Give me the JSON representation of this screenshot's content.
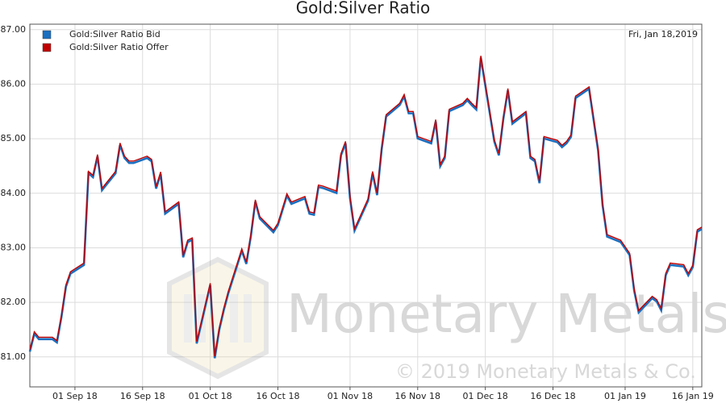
{
  "chart_data": {
    "type": "line",
    "title": "Gold:Silver Ratio",
    "annotation": "Fri, Jan 18,2019",
    "watermark": "Monetary Metals",
    "copyright": "© 2019 Monetary Metals & Co.",
    "x": [
      "2018-08-22",
      "2018-08-23",
      "2018-08-24",
      "2018-08-27",
      "2018-08-28",
      "2018-08-29",
      "2018-08-30",
      "2018-08-31",
      "2018-09-03",
      "2018-09-04",
      "2018-09-05",
      "2018-09-06",
      "2018-09-07",
      "2018-09-10",
      "2018-09-11",
      "2018-09-12",
      "2018-09-13",
      "2018-09-14",
      "2018-09-17",
      "2018-09-18",
      "2018-09-19",
      "2018-09-20",
      "2018-09-21",
      "2018-09-24",
      "2018-09-25",
      "2018-09-26",
      "2018-09-27",
      "2018-09-28",
      "2018-10-01",
      "2018-10-02",
      "2018-10-03",
      "2018-10-04",
      "2018-10-05",
      "2018-10-08",
      "2018-10-09",
      "2018-10-10",
      "2018-10-11",
      "2018-10-12",
      "2018-10-15",
      "2018-10-16",
      "2018-10-17",
      "2018-10-18",
      "2018-10-19",
      "2018-10-22",
      "2018-10-23",
      "2018-10-24",
      "2018-10-25",
      "2018-10-26",
      "2018-10-29",
      "2018-10-30",
      "2018-10-31",
      "2018-11-01",
      "2018-11-02",
      "2018-11-05",
      "2018-11-06",
      "2018-11-07",
      "2018-11-08",
      "2018-11-09",
      "2018-11-12",
      "2018-11-13",
      "2018-11-14",
      "2018-11-15",
      "2018-11-16",
      "2018-11-19",
      "2018-11-20",
      "2018-11-21",
      "2018-11-22",
      "2018-11-23",
      "2018-11-26",
      "2018-11-27",
      "2018-11-28",
      "2018-11-29",
      "2018-11-30",
      "2018-12-03",
      "2018-12-04",
      "2018-12-05",
      "2018-12-06",
      "2018-12-07",
      "2018-12-10",
      "2018-12-11",
      "2018-12-12",
      "2018-12-13",
      "2018-12-14",
      "2018-12-17",
      "2018-12-18",
      "2018-12-19",
      "2018-12-20",
      "2018-12-21",
      "2018-12-24",
      "2018-12-26",
      "2018-12-27",
      "2018-12-28",
      "2018-12-31",
      "2019-01-02",
      "2019-01-03",
      "2019-01-04",
      "2019-01-07",
      "2019-01-08",
      "2019-01-09",
      "2019-01-10",
      "2019-01-11",
      "2019-01-14",
      "2019-01-15",
      "2019-01-16",
      "2019-01-17",
      "2019-01-18"
    ],
    "series": [
      {
        "name": "Gold:Silver Ratio Bid",
        "color": "#1a6fc0",
        "values": [
          81.11,
          81.44,
          81.34,
          81.34,
          81.28,
          81.74,
          82.3,
          82.54,
          82.7,
          84.38,
          84.31,
          84.69,
          84.07,
          84.38,
          84.9,
          84.66,
          84.57,
          84.57,
          84.66,
          84.6,
          84.1,
          84.37,
          83.64,
          83.82,
          82.84,
          83.12,
          83.16,
          81.26,
          82.33,
          80.99,
          81.51,
          81.87,
          82.18,
          82.96,
          82.72,
          83.22,
          83.86,
          83.55,
          83.3,
          83.43,
          83.7,
          83.97,
          83.82,
          83.92,
          83.64,
          83.62,
          84.13,
          84.11,
          84.02,
          84.71,
          84.93,
          83.92,
          83.33,
          83.88,
          84.38,
          83.98,
          84.81,
          85.42,
          85.63,
          85.79,
          85.48,
          85.48,
          85.02,
          84.93,
          85.33,
          84.51,
          84.66,
          85.52,
          85.63,
          85.72,
          85.63,
          85.55,
          86.5,
          84.96,
          84.71,
          85.38,
          85.9,
          85.29,
          85.48,
          84.66,
          84.6,
          84.2,
          85.02,
          84.95,
          84.86,
          84.93,
          85.05,
          85.76,
          85.93,
          84.8,
          83.79,
          83.22,
          83.12,
          82.88,
          82.23,
          81.83,
          82.09,
          82.03,
          81.87,
          82.51,
          82.7,
          82.67,
          82.51,
          82.66,
          83.31,
          83.36
        ]
      },
      {
        "name": "Gold:Silver Ratio Offer",
        "color": "#c00000",
        "values": [
          81.13,
          81.46,
          81.36,
          81.36,
          81.3,
          81.76,
          82.32,
          82.56,
          82.72,
          84.4,
          84.33,
          84.71,
          84.09,
          84.4,
          84.92,
          84.68,
          84.59,
          84.59,
          84.68,
          84.62,
          84.12,
          84.39,
          83.66,
          83.84,
          82.86,
          83.14,
          83.18,
          81.28,
          82.35,
          81.01,
          81.53,
          81.89,
          82.2,
          82.98,
          82.74,
          83.24,
          83.88,
          83.57,
          83.32,
          83.45,
          83.72,
          83.99,
          83.84,
          83.94,
          83.66,
          83.64,
          84.15,
          84.13,
          84.04,
          84.73,
          84.95,
          83.94,
          83.35,
          83.9,
          84.4,
          84.0,
          84.83,
          85.44,
          85.65,
          85.81,
          85.5,
          85.5,
          85.04,
          84.95,
          85.35,
          84.53,
          84.68,
          85.54,
          85.65,
          85.74,
          85.65,
          85.57,
          86.52,
          84.98,
          84.73,
          85.4,
          85.92,
          85.31,
          85.5,
          84.68,
          84.62,
          84.22,
          85.04,
          84.97,
          84.88,
          84.95,
          85.07,
          85.78,
          85.95,
          84.82,
          83.81,
          83.24,
          83.14,
          82.9,
          82.25,
          81.85,
          82.11,
          82.05,
          81.89,
          82.53,
          82.72,
          82.69,
          82.53,
          82.68,
          83.33,
          83.38
        ]
      }
    ],
    "xlim": [
      "2018-08-22",
      "2019-01-18"
    ],
    "xticks": [
      {
        "value": "2018-09-01",
        "label": "01 Sep 18"
      },
      {
        "value": "2018-09-16",
        "label": "16 Sep 18"
      },
      {
        "value": "2018-10-01",
        "label": "01 Oct 18"
      },
      {
        "value": "2018-10-16",
        "label": "16 Oct 18"
      },
      {
        "value": "2018-11-01",
        "label": "01 Nov 18"
      },
      {
        "value": "2018-11-16",
        "label": "16 Nov 18"
      },
      {
        "value": "2018-12-01",
        "label": "01 Dec 18"
      },
      {
        "value": "2018-12-16",
        "label": "16 Dec 18"
      },
      {
        "value": "2019-01-01",
        "label": "01 Jan 19"
      },
      {
        "value": "2019-01-16",
        "label": "16 Jan 19"
      }
    ],
    "ylim": [
      80.45,
      87.1
    ],
    "yticks": [
      {
        "value": 81,
        "label": "81.00"
      },
      {
        "value": 82,
        "label": "82.00"
      },
      {
        "value": 83,
        "label": "83.00"
      },
      {
        "value": 84,
        "label": "84.00"
      },
      {
        "value": 85,
        "label": "85.00"
      },
      {
        "value": 86,
        "label": "86.00"
      },
      {
        "value": 87,
        "label": "87.00"
      }
    ],
    "grid": true
  }
}
